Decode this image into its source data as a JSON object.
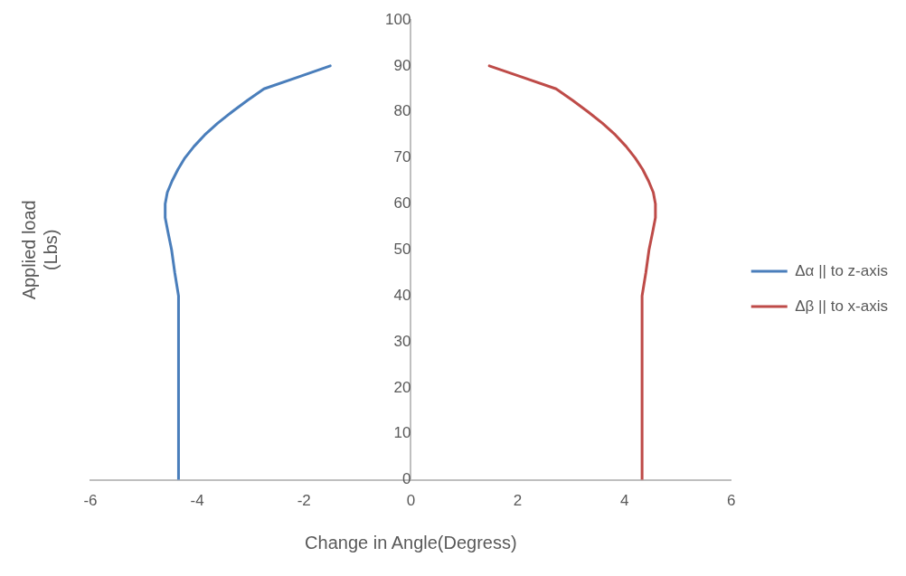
{
  "chart_data": {
    "type": "line",
    "xlabel": "Change in Angle(Degress)",
    "ylabel": "Applied load\n(Lbs)",
    "xlim": [
      -6,
      6
    ],
    "xticks": [
      -6,
      -4,
      -2,
      0,
      2,
      4,
      6
    ],
    "ylim": [
      0,
      100
    ],
    "yticks": [
      0,
      10,
      20,
      30,
      40,
      50,
      60,
      70,
      80,
      90,
      100
    ],
    "grid": false,
    "legend": "right",
    "marker": "none",
    "line_style": "solid",
    "series": [
      {
        "name": "Δα || to z-axis",
        "color": "#4a7ebb",
        "x": [
          -4.35,
          -4.35,
          -4.42,
          -4.48,
          -4.55,
          -4.6,
          -4.6,
          -4.56,
          -4.47,
          -4.36,
          -4.23,
          -4.06,
          -3.86,
          -3.62,
          -3.35,
          -3.06,
          -2.75,
          -2.13,
          -1.51
        ],
        "values": [
          0,
          40,
          45,
          50,
          54,
          57,
          60,
          62.5,
          65,
          67.5,
          70,
          72.5,
          75,
          77.5,
          80,
          82.5,
          85,
          87.5,
          90
        ]
      },
      {
        "name": "Δβ || to x-axis",
        "color": "#be4b48",
        "x": [
          4.33,
          4.33,
          4.4,
          4.46,
          4.53,
          4.58,
          4.58,
          4.54,
          4.45,
          4.34,
          4.2,
          4.03,
          3.83,
          3.59,
          3.32,
          3.03,
          2.72,
          2.1,
          1.47
        ],
        "values": [
          0,
          40,
          45,
          50,
          54,
          57,
          60,
          62.5,
          65,
          67.5,
          70,
          72.5,
          75,
          77.5,
          80,
          82.5,
          85,
          87.5,
          90
        ]
      }
    ]
  }
}
